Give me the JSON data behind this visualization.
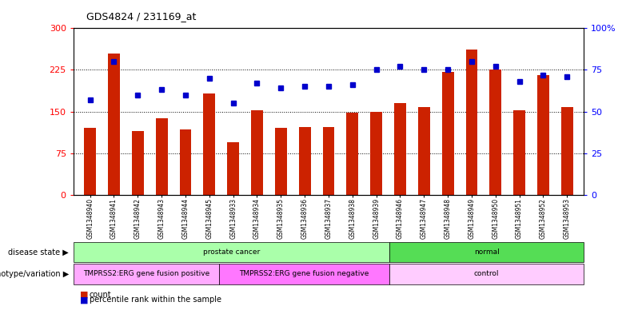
{
  "title": "GDS4824 / 231169_at",
  "samples": [
    "GSM1348940",
    "GSM1348941",
    "GSM1348942",
    "GSM1348943",
    "GSM1348944",
    "GSM1348945",
    "GSM1348933",
    "GSM1348934",
    "GSM1348935",
    "GSM1348936",
    "GSM1348937",
    "GSM1348938",
    "GSM1348939",
    "GSM1348946",
    "GSM1348947",
    "GSM1348948",
    "GSM1348949",
    "GSM1348950",
    "GSM1348951",
    "GSM1348952",
    "GSM1348953"
  ],
  "counts": [
    120,
    255,
    115,
    138,
    118,
    183,
    95,
    152,
    120,
    122,
    122,
    148,
    150,
    165,
    158,
    222,
    262,
    225,
    152,
    215,
    158
  ],
  "percentile_ranks": [
    57,
    80,
    60,
    63,
    60,
    70,
    55,
    67,
    64,
    65,
    65,
    66,
    75,
    77,
    75,
    75,
    80,
    77,
    68,
    72,
    71
  ],
  "disease_state_groups": [
    {
      "label": "prostate cancer",
      "start": 0,
      "end": 13,
      "color": "#aaffaa"
    },
    {
      "label": "normal",
      "start": 13,
      "end": 21,
      "color": "#55dd55"
    }
  ],
  "genotype_groups": [
    {
      "label": "TMPRSS2:ERG gene fusion positive",
      "start": 0,
      "end": 6,
      "color": "#ffaaff"
    },
    {
      "label": "TMPRSS2:ERG gene fusion negative",
      "start": 6,
      "end": 13,
      "color": "#ff77ff"
    },
    {
      "label": "control",
      "start": 13,
      "end": 21,
      "color": "#ffccff"
    }
  ],
  "disease_state_label": "disease state",
  "genotype_label": "genotype/variation",
  "bar_color": "#cc2200",
  "dot_color": "#0000cc",
  "ylim_left": [
    0,
    300
  ],
  "ylim_right": [
    0,
    100
  ],
  "yticks_left": [
    0,
    75,
    150,
    225,
    300
  ],
  "yticks_right": [
    0,
    25,
    50,
    75,
    100
  ],
  "ytick_labels_right": [
    "0",
    "25",
    "50",
    "75",
    "100%"
  ],
  "grid_values": [
    75,
    150,
    225
  ],
  "background_color": "#ffffff"
}
